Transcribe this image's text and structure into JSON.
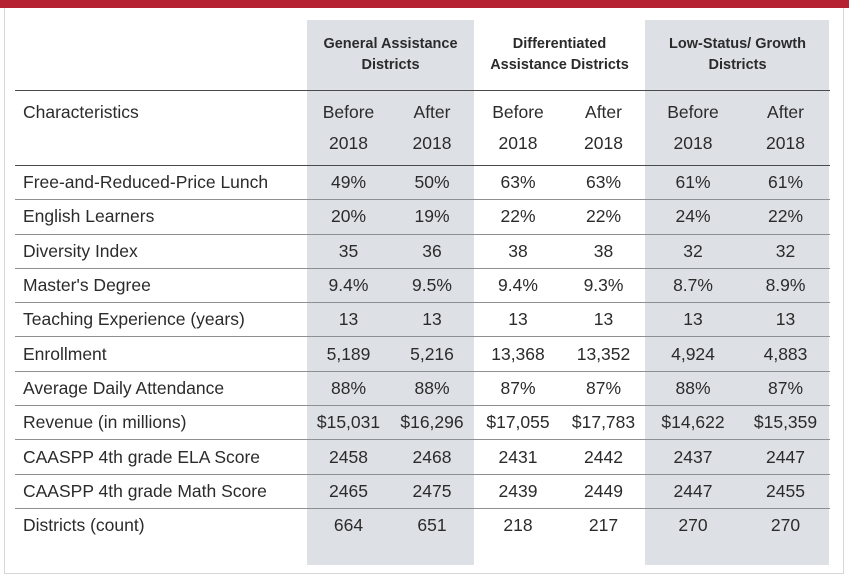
{
  "table": {
    "groups": [
      "General Assistance Districts",
      "Differentiated Assistance Districts",
      "Low-Status/ Growth Districts"
    ],
    "characteristics_label": "Characteristics",
    "period_top": [
      "Before",
      "After",
      "Before",
      "After",
      "Before",
      "After"
    ],
    "period_bottom": [
      "2018",
      "2018",
      "2018",
      "2018",
      "2018",
      "2018"
    ],
    "rows": [
      {
        "label": "Free-and-Reduced-Price Lunch",
        "values": [
          "49%",
          "50%",
          "63%",
          "63%",
          "61%",
          "61%"
        ]
      },
      {
        "label": "English Learners",
        "values": [
          "20%",
          "19%",
          "22%",
          "22%",
          "24%",
          "22%"
        ]
      },
      {
        "label": "Diversity Index",
        "values": [
          "35",
          "36",
          "38",
          "38",
          "32",
          "32"
        ]
      },
      {
        "label": "Master's Degree",
        "values": [
          "9.4%",
          "9.5%",
          "9.4%",
          "9.3%",
          "8.7%",
          "8.9%"
        ]
      },
      {
        "label": "Teaching Experience (years)",
        "values": [
          "13",
          "13",
          "13",
          "13",
          "13",
          "13"
        ]
      },
      {
        "label": "Enrollment",
        "values": [
          "5,189",
          "5,216",
          "13,368",
          "13,352",
          "4,924",
          "4,883"
        ]
      },
      {
        "label": "Average Daily Attendance",
        "values": [
          "88%",
          "88%",
          "87%",
          "87%",
          "88%",
          "87%"
        ]
      },
      {
        "label": "Revenue (in millions)",
        "values": [
          "$15,031",
          "$16,296",
          "$17,055",
          "$17,783",
          "$14,622",
          "$15,359"
        ]
      },
      {
        "label": "CAASPP 4th grade ELA Score",
        "values": [
          "2458",
          "2468",
          "2431",
          "2442",
          "2437",
          "2447"
        ]
      },
      {
        "label": "CAASPP 4th grade Math Score",
        "values": [
          "2465",
          "2475",
          "2439",
          "2449",
          "2447",
          "2455"
        ]
      },
      {
        "label": "Districts (count)",
        "values": [
          "664",
          "651",
          "218",
          "217",
          "270",
          "270"
        ]
      }
    ]
  },
  "colors": {
    "accent": "#b52232",
    "shade": "#dde1e6",
    "text": "#2b2b2b"
  }
}
